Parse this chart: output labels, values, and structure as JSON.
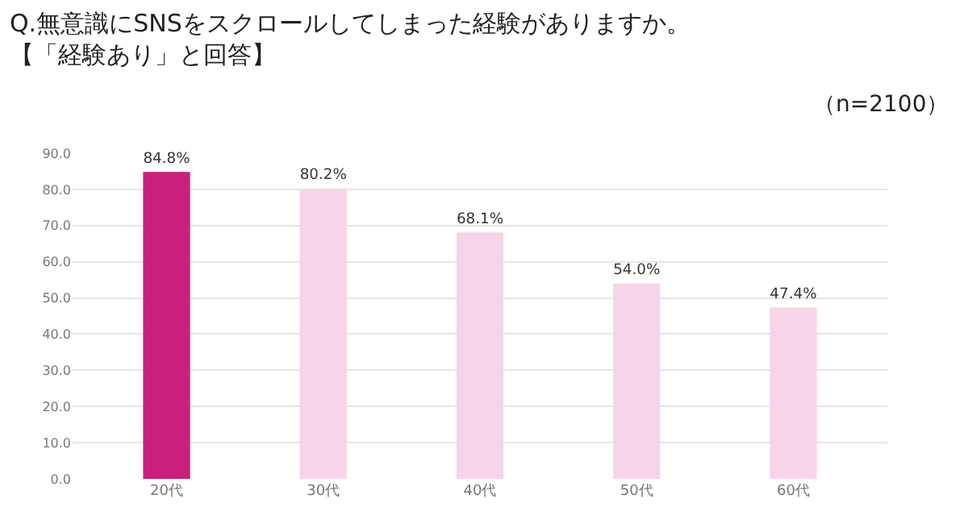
{
  "chart_data": {
    "type": "bar",
    "title": "Q.無意識にSNSをスクロールしてしまった経験がありますか。",
    "subtitle": "【「経験あり」と回答】",
    "annotations": [
      "（n=2100）"
    ],
    "categories": [
      "20代",
      "30代",
      "40代",
      "50代",
      "60代"
    ],
    "values": [
      84.8,
      80.2,
      68.1,
      54.0,
      47.4
    ],
    "colors": [
      "#c9207d",
      "#f7d5e8",
      "#f7d5e8",
      "#f7d5e8",
      "#f7d5e8"
    ],
    "value_labels": [
      "84.8%",
      "80.2%",
      "68.1%",
      "54.0%",
      "47.4%"
    ],
    "ylim": [
      0,
      90
    ],
    "yticks": [
      {
        "value": 0,
        "label": "0.0"
      },
      {
        "value": 10,
        "label": "10.0"
      },
      {
        "value": 20,
        "label": "20.0"
      },
      {
        "value": 30,
        "label": "30.0"
      },
      {
        "value": 40,
        "label": "40.0"
      },
      {
        "value": 50,
        "label": "50.0"
      },
      {
        "value": 60,
        "label": "60.0"
      },
      {
        "value": 70,
        "label": "70.0"
      },
      {
        "value": 80,
        "label": "80.0"
      },
      {
        "value": 90,
        "label": "90.0"
      }
    ],
    "grid": "y",
    "legend": false
  }
}
